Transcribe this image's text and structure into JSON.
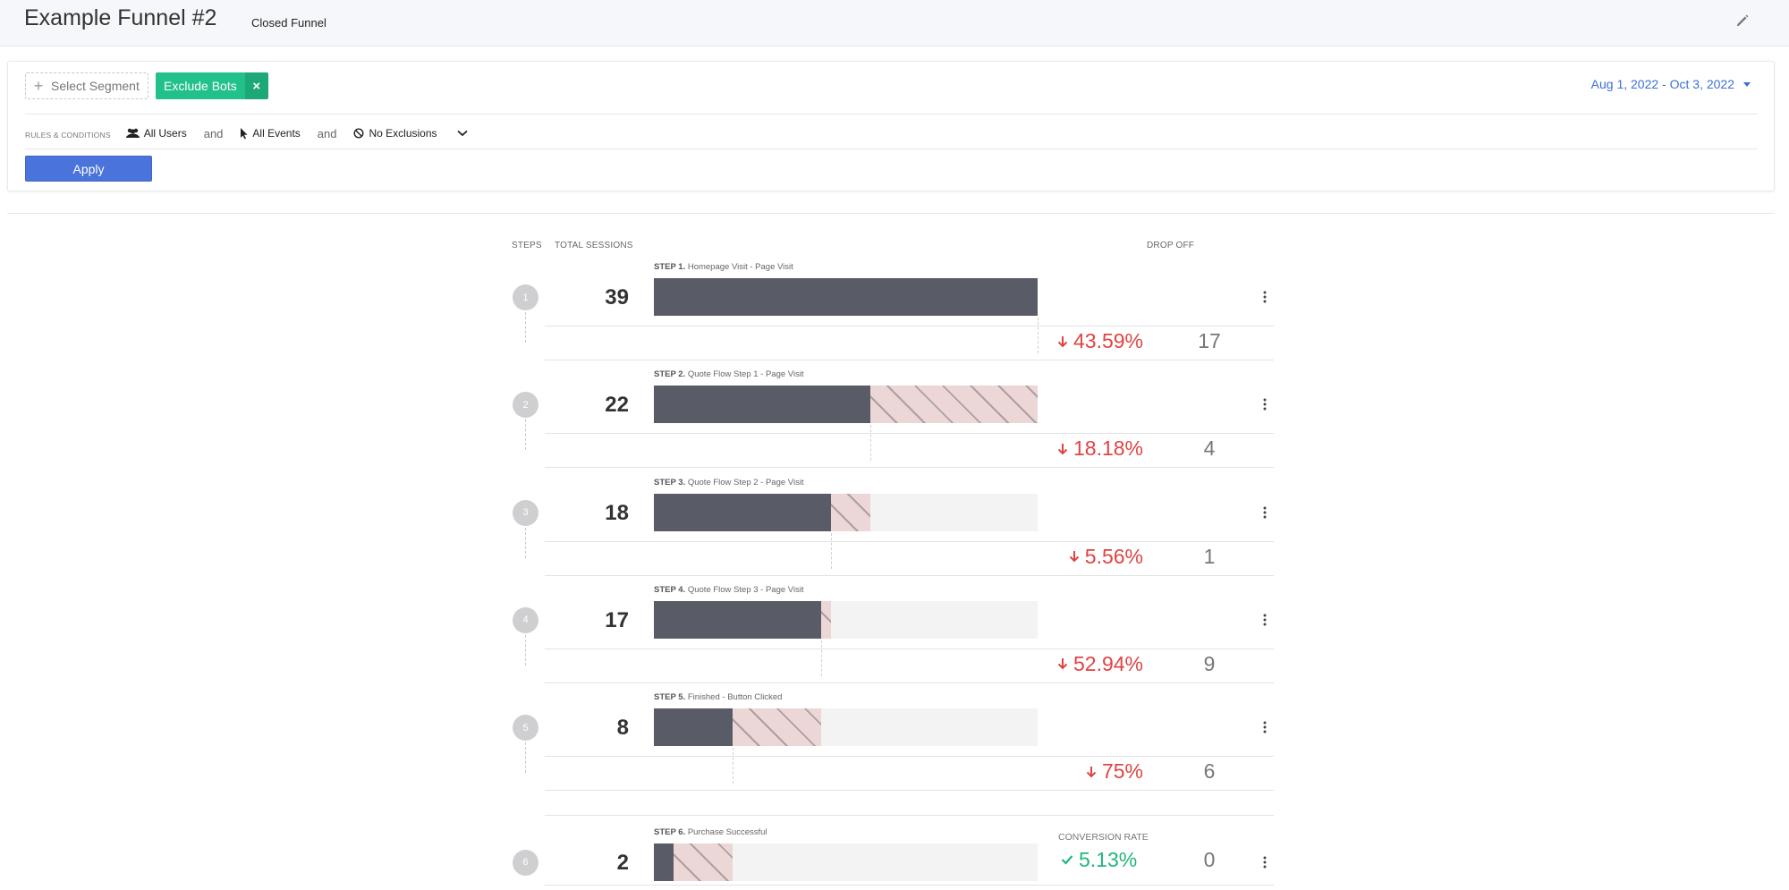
{
  "header": {
    "title": "Example Funnel #2",
    "subtitle": "Closed Funnel",
    "edit_icon": "pencil-icon"
  },
  "filters": {
    "select_segment_label": "Select Segment",
    "exclude_bots_label": "Exclude Bots",
    "exclude_bots_remove": "×",
    "date_range": "Aug 1, 2022 - Oct 3, 2022",
    "rules_label": "RULES & CONDITIONS",
    "users_label": "All Users",
    "events_label": "All Events",
    "exclusions_label": "No Exclusions",
    "and_1": "and",
    "and_2": "and",
    "apply_label": "Apply",
    "accent_color": "#4a74db",
    "chip_color": "#22c08a"
  },
  "columns": {
    "steps": "STEPS",
    "total_sessions": "TOTAL SESSIONS",
    "drop_off": "DROP OFF"
  },
  "funnel": {
    "steps": [
      {
        "number": "1",
        "prefix": "STEP 1.",
        "label": "Homepage Visit - Page Visit",
        "sessions": "39",
        "prev_sessions": 39,
        "value": 39,
        "drop_pct": "43.59%",
        "drop_count": "17"
      },
      {
        "number": "2",
        "prefix": "STEP 2.",
        "label": "Quote Flow Step 1 - Page Visit",
        "sessions": "22",
        "prev_sessions": 39,
        "value": 22,
        "drop_pct": "18.18%",
        "drop_count": "4"
      },
      {
        "number": "3",
        "prefix": "STEP 3.",
        "label": "Quote Flow Step 2 - Page Visit",
        "sessions": "18",
        "prev_sessions": 22,
        "value": 18,
        "drop_pct": "5.56%",
        "drop_count": "1"
      },
      {
        "number": "4",
        "prefix": "STEP 4.",
        "label": "Quote Flow Step 3 - Page Visit",
        "sessions": "17",
        "prev_sessions": 18,
        "value": 17,
        "drop_pct": "52.94%",
        "drop_count": "9"
      },
      {
        "number": "5",
        "prefix": "STEP 5.",
        "label": "Finished - Button Clicked",
        "sessions": "8",
        "prev_sessions": 17,
        "value": 8,
        "drop_pct": "75%",
        "drop_count": "6"
      },
      {
        "number": "6",
        "prefix": "STEP 6.",
        "label": "Purchase Successful",
        "sessions": "2",
        "prev_sessions": 8,
        "value": 2,
        "conversion_label": "CONVERSION RATE",
        "conversion_pct": "5.13%",
        "drop_count": "0"
      }
    ],
    "max_sessions": 39,
    "drop_color": "#e04343",
    "conversion_color": "#21b67a"
  }
}
